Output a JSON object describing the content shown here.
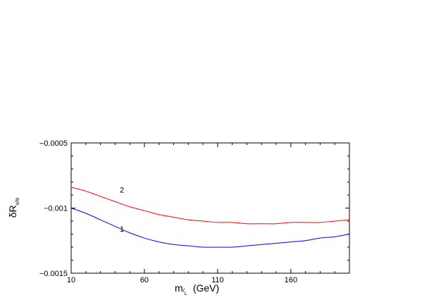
{
  "chart_data": {
    "type": "line",
    "xlabel": {
      "main": "m",
      "sub_top": "/",
      "sub": "L",
      "suffix": "(GeV)"
    },
    "ylabel": {
      "main": "δR",
      "sub": "ν/e"
    },
    "xlim": [
      10,
      200
    ],
    "ylim": [
      -0.0015,
      -0.0005
    ],
    "x_ticks": [
      {
        "value": 10,
        "label": "10"
      },
      {
        "value": 60,
        "label": "60"
      },
      {
        "value": 110,
        "label": "110"
      },
      {
        "value": 160,
        "label": "160"
      }
    ],
    "y_ticks": [
      {
        "value": -0.0005,
        "label": "−0.0005"
      },
      {
        "value": -0.001,
        "label": "−0.001"
      },
      {
        "value": -0.0015,
        "label": "−0.0015"
      }
    ],
    "grid": false,
    "series": [
      {
        "name": "1",
        "color": "#0000ff",
        "label_at": [
          35,
          -0.00118
        ],
        "points": [
          [
            10,
            -0.001
          ],
          [
            20,
            -0.00104
          ],
          [
            30,
            -0.00109
          ],
          [
            40,
            -0.00114
          ],
          [
            50,
            -0.00119
          ],
          [
            60,
            -0.00123
          ],
          [
            70,
            -0.00126
          ],
          [
            80,
            -0.00128
          ],
          [
            90,
            -0.00129
          ],
          [
            100,
            -0.0013
          ],
          [
            110,
            -0.0013
          ],
          [
            120,
            -0.0013
          ],
          [
            130,
            -0.00129
          ],
          [
            140,
            -0.00128
          ],
          [
            150,
            -0.00127
          ],
          [
            160,
            -0.00126
          ],
          [
            170,
            -0.00125
          ],
          [
            180,
            -0.00123
          ],
          [
            190,
            -0.00122
          ],
          [
            200,
            -0.0012
          ]
        ]
      },
      {
        "name": "2",
        "color": "#ff0000",
        "label_at": [
          35,
          -0.00088
        ],
        "points": [
          [
            10,
            -0.00084
          ],
          [
            20,
            -0.00087
          ],
          [
            30,
            -0.00091
          ],
          [
            40,
            -0.00095
          ],
          [
            50,
            -0.00099
          ],
          [
            60,
            -0.00102
          ],
          [
            70,
            -0.00105
          ],
          [
            80,
            -0.00107
          ],
          [
            90,
            -0.00109
          ],
          [
            100,
            -0.0011
          ],
          [
            110,
            -0.00111
          ],
          [
            120,
            -0.00111
          ],
          [
            130,
            -0.00112
          ],
          [
            140,
            -0.00112
          ],
          [
            150,
            -0.00112
          ],
          [
            160,
            -0.00111
          ],
          [
            170,
            -0.00111
          ],
          [
            180,
            -0.00111
          ],
          [
            190,
            -0.0011
          ],
          [
            200,
            -0.00109
          ]
        ]
      }
    ]
  }
}
